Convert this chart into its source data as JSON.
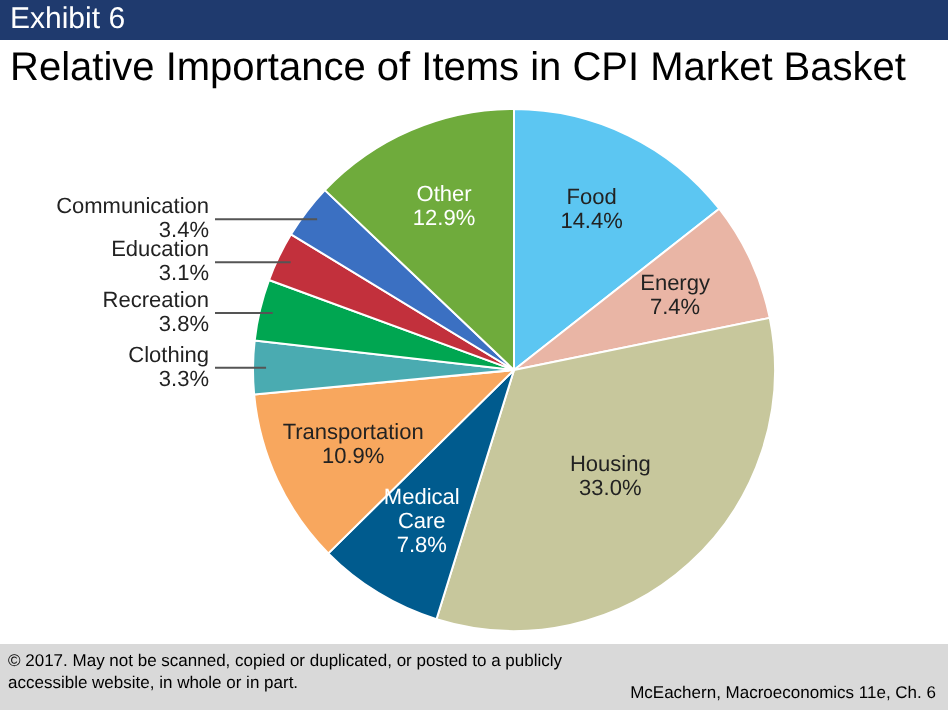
{
  "chart_data": {
    "type": "pie",
    "title": "Relative Importance of Items in CPI Market Basket",
    "categories": [
      "Food",
      "Energy",
      "Housing",
      "Medical Care",
      "Transportation",
      "Clothing",
      "Recreation",
      "Education",
      "Communication",
      "Other"
    ],
    "values": [
      14.4,
      7.4,
      33.0,
      7.8,
      10.9,
      3.3,
      3.8,
      3.1,
      3.4,
      12.9
    ],
    "value_labels": [
      "14.4%",
      "7.4%",
      "33.0%",
      "7.8%",
      "10.9%",
      "3.3%",
      "3.8%",
      "3.1%",
      "3.4%",
      "12.9%"
    ],
    "colors": [
      "#5cc6f2",
      "#e9b5a5",
      "#c7c79c",
      "#005b8e",
      "#f8a75e",
      "#4aabb1",
      "#00a651",
      "#c2303c",
      "#3b70c2",
      "#6fab3c"
    ],
    "legend": false,
    "annotations": [
      "Exhibit 6",
      "© 2017. May not be scanned, copied or duplicated, or posted to a publicly accessible website, in whole or in part.",
      "McEachern, Macroeconomics 11e, Ch. 6"
    ]
  }
}
